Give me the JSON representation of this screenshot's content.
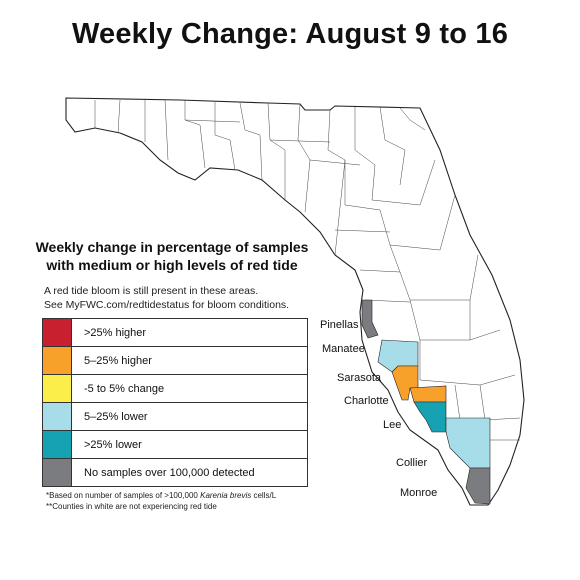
{
  "title": "Weekly Change: August 9 to 16",
  "legend": {
    "title_line1": "Weekly change in percentage of samples",
    "title_line2": "with medium or high levels of red tide",
    "note_line1": "A red tide bloom is still present in these areas.",
    "note_line2": "See MyFWC.com/redtidestatus for bloom conditions.",
    "items": [
      {
        "label": ">25% higher",
        "color": "#c8202f"
      },
      {
        "label": "5–25% higher",
        "color": "#f7a12a"
      },
      {
        "label": "-5 to 5% change",
        "color": "#fbee4a"
      },
      {
        "label": "5–25% lower",
        "color": "#a6dde8"
      },
      {
        "label": ">25% lower",
        "color": "#17a2b4"
      },
      {
        "label": "No samples over 100,000 detected",
        "color": "#7a7c7f"
      }
    ],
    "footnote1_pre": "*Based on number of samples of >100,000 ",
    "footnote1_italic": "Karenia brevis",
    "footnote1_post": " cells/L",
    "footnote2": "**Counties in white are not experiencing red tide"
  },
  "counties": {
    "pinellas": {
      "label": "Pinellas",
      "category": "No samples over 100,000 detected"
    },
    "manatee": {
      "label": "Manatee",
      "category": "5–25% lower"
    },
    "sarasota": {
      "label": "Sarasota",
      "category": "5–25% higher"
    },
    "charlotte": {
      "label": "Charlotte",
      "category": "5–25% higher"
    },
    "lee": {
      "label": "Lee",
      "category": ">25% lower"
    },
    "collier": {
      "label": "Collier",
      "category": "5–25% lower"
    },
    "monroe": {
      "label": "Monroe",
      "category": "No samples over 100,000 detected"
    }
  }
}
